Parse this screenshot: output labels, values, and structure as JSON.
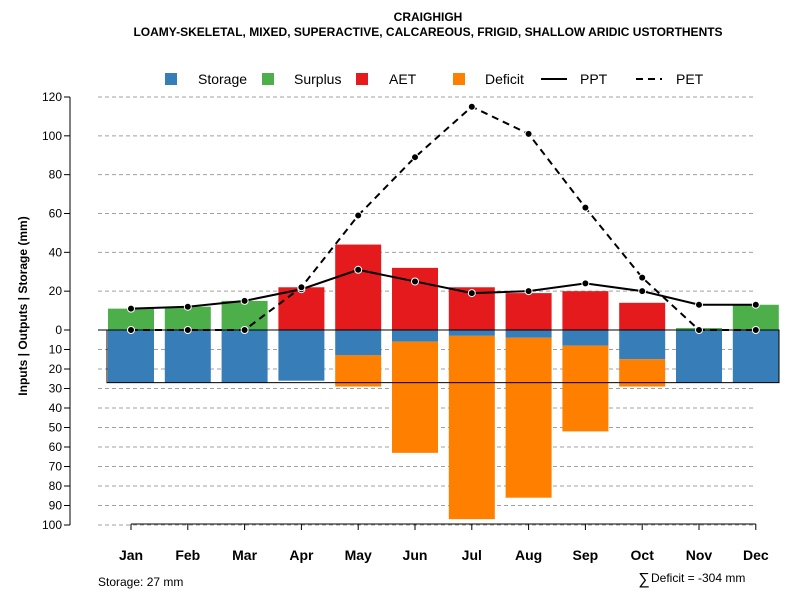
{
  "chart_data": {
    "type": "bar",
    "title": "CRAIGHIGH",
    "subtitle": "LOAMY-SKELETAL, MIXED, SUPERACTIVE, CALCAREOUS, FRIGID, SHALLOW ARIDIC USTORTHENTS",
    "ylabel": "Inputs | Outputs | Storage    (mm)",
    "xlabel": "",
    "categories": [
      "Jan",
      "Feb",
      "Mar",
      "Apr",
      "May",
      "Jun",
      "Jul",
      "Aug",
      "Sep",
      "Oct",
      "Nov",
      "Dec"
    ],
    "ylim": [
      -100,
      120
    ],
    "yticks": [
      120,
      100,
      80,
      60,
      40,
      20,
      0,
      -10,
      -20,
      -30,
      -40,
      -50,
      -60,
      -70,
      -80,
      -90,
      -100
    ],
    "ytick_labels": [
      "120",
      "100",
      "80",
      "60",
      "40",
      "20",
      "0",
      "10",
      "20",
      "30",
      "40",
      "50",
      "60",
      "70",
      "80",
      "90",
      "100"
    ],
    "grid": true,
    "legend_position": "top",
    "colors": {
      "storage": "#377EB8",
      "surplus": "#4DAF4A",
      "aet": "#E41A1C",
      "deficit": "#FF7F00",
      "grid": "#a0a0a0"
    },
    "legend": [
      "Storage",
      "Surplus",
      "AET",
      "Deficit",
      "PPT",
      "PET"
    ],
    "series": [
      {
        "name": "Storage",
        "kind": "bar-below",
        "values": [
          27,
          27,
          27,
          26,
          13,
          6,
          3,
          4,
          8,
          15,
          27,
          27
        ]
      },
      {
        "name": "Surplus",
        "kind": "bar-above",
        "values": [
          11,
          12,
          15,
          0,
          0,
          0,
          0,
          0,
          0,
          0,
          1,
          13
        ]
      },
      {
        "name": "AET",
        "kind": "bar-above",
        "values": [
          0,
          0,
          0,
          22,
          44,
          32,
          22,
          19,
          20,
          14,
          0,
          0
        ]
      },
      {
        "name": "Deficit",
        "kind": "bar-below",
        "values": [
          0,
          0,
          0,
          0,
          16,
          57,
          94,
          82,
          44,
          14,
          0,
          0
        ]
      },
      {
        "name": "PPT",
        "kind": "line-solid",
        "values": [
          11,
          12,
          15,
          21,
          31,
          25,
          19,
          20,
          24,
          20,
          13,
          13
        ]
      },
      {
        "name": "PET",
        "kind": "line-dashed",
        "values": [
          0,
          0,
          0,
          22,
          59,
          89,
          115,
          101,
          63,
          27,
          0,
          0
        ]
      }
    ],
    "storage_capacity": 27
  },
  "footer": {
    "storage_label": "Storage: 27 mm",
    "deficit_symbol": "∑",
    "deficit_label": "Deficit = -304 mm"
  }
}
